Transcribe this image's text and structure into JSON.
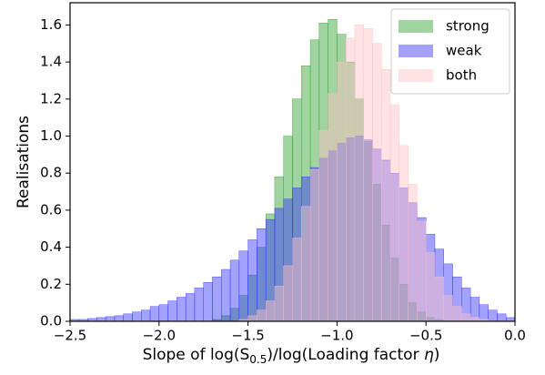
{
  "chart_data": {
    "type": "histogram",
    "xlabel": [
      "Slope of log(S",
      "0.5",
      ")/log(Loading factor ",
      "η",
      ")"
    ],
    "ylabel": "Realisations",
    "bins": [
      -2.5,
      -2.45,
      -2.4,
      -2.35,
      -2.3,
      -2.25,
      -2.2,
      -2.15,
      -2.1,
      -2.05,
      -2.0,
      -1.95,
      -1.9,
      -1.85,
      -1.8,
      -1.75,
      -1.7,
      -1.65,
      -1.6,
      -1.55,
      -1.5,
      -1.45,
      -1.4,
      -1.35,
      -1.3,
      -1.25,
      -1.2,
      -1.15,
      -1.1,
      -1.05,
      -1.0,
      -0.95,
      -0.9,
      -0.85,
      -0.8,
      -0.75,
      -0.7,
      -0.65,
      -0.6,
      -0.55,
      -0.5,
      -0.45,
      -0.4,
      -0.35,
      -0.3,
      -0.25,
      -0.2,
      -0.15,
      -0.1,
      -0.05,
      0
    ],
    "series": [
      {
        "name": "strong",
        "color": "#2ca02c",
        "values": [
          0,
          0,
          0,
          0,
          0,
          0,
          0,
          0,
          0,
          0,
          0,
          0,
          0,
          0,
          0,
          0,
          0.01,
          0.03,
          0.07,
          0.14,
          0.25,
          0.4,
          0.58,
          0.78,
          1.0,
          1.2,
          1.38,
          1.52,
          1.61,
          1.63,
          1.55,
          1.4,
          1.2,
          0.97,
          0.74,
          0.52,
          0.34,
          0.2,
          0.1,
          0.05,
          0.02,
          0.01,
          0,
          0,
          0,
          0,
          0,
          0,
          0,
          0
        ]
      },
      {
        "name": "weak",
        "color": "#3333ff",
        "values": [
          0.01,
          0.01,
          0.015,
          0.02,
          0.025,
          0.03,
          0.04,
          0.05,
          0.06,
          0.08,
          0.09,
          0.11,
          0.13,
          0.15,
          0.18,
          0.21,
          0.24,
          0.28,
          0.33,
          0.38,
          0.44,
          0.5,
          0.55,
          0.61,
          0.66,
          0.72,
          0.78,
          0.83,
          0.88,
          0.92,
          0.96,
          0.99,
          1.0,
          0.98,
          0.93,
          0.87,
          0.8,
          0.72,
          0.64,
          0.56,
          0.47,
          0.39,
          0.31,
          0.24,
          0.18,
          0.13,
          0.09,
          0.06,
          0.04,
          0.02
        ]
      },
      {
        "name": "both",
        "color": "#ffc0c4",
        "values": [
          0,
          0,
          0,
          0,
          0,
          0,
          0,
          0,
          0,
          0,
          0,
          0,
          0,
          0,
          0,
          0,
          0,
          0,
          0,
          0.01,
          0.03,
          0.06,
          0.11,
          0.19,
          0.3,
          0.45,
          0.62,
          0.82,
          1.03,
          1.23,
          1.4,
          1.53,
          1.6,
          1.58,
          1.5,
          1.36,
          1.17,
          0.95,
          0.74,
          0.54,
          0.37,
          0.24,
          0.14,
          0.08,
          0.04,
          0.02,
          0.01,
          0,
          0,
          0
        ]
      }
    ],
    "xlim": [
      -2.5,
      0
    ],
    "xticks": [
      {
        "value": -2.5,
        "label": "−2.5"
      },
      {
        "value": -2.0,
        "label": "−2.0"
      },
      {
        "value": -1.5,
        "label": "−1.5"
      },
      {
        "value": -1.0,
        "label": "−1.0"
      },
      {
        "value": -0.5,
        "label": "−0.5"
      },
      {
        "value": 0,
        "label": "0.0"
      }
    ],
    "ylim": [
      0,
      1.72
    ],
    "yticks": [
      {
        "value": 0,
        "label": "0.0"
      },
      0.2,
      0.4,
      0.6,
      0.8,
      {
        "value": 1,
        "label": "1.0"
      },
      1.2,
      1.4,
      1.6
    ],
    "legend": "upper right"
  }
}
